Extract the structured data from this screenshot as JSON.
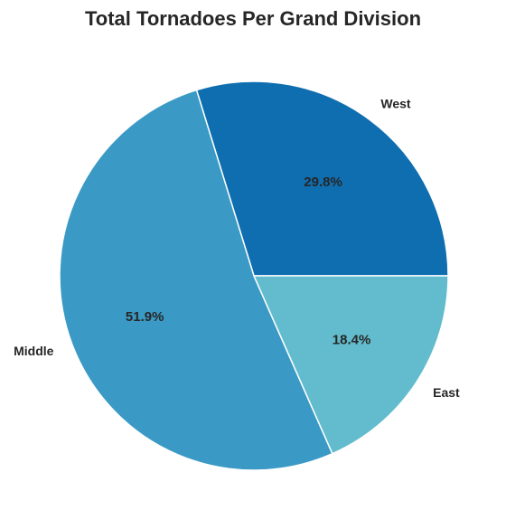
{
  "chart_data": {
    "type": "pie",
    "title": "Total Tornadoes Per Grand Division",
    "categories": [
      "West",
      "Middle",
      "East"
    ],
    "values": [
      29.8,
      51.9,
      18.4
    ],
    "percent_labels": [
      "29.8%",
      "51.9%",
      "18.4%"
    ],
    "colors": [
      "#0f6eb0",
      "#3a9ac5",
      "#62bccd"
    ],
    "start_angle_deg": 0,
    "direction": "counterclockwise",
    "legend": "none"
  }
}
